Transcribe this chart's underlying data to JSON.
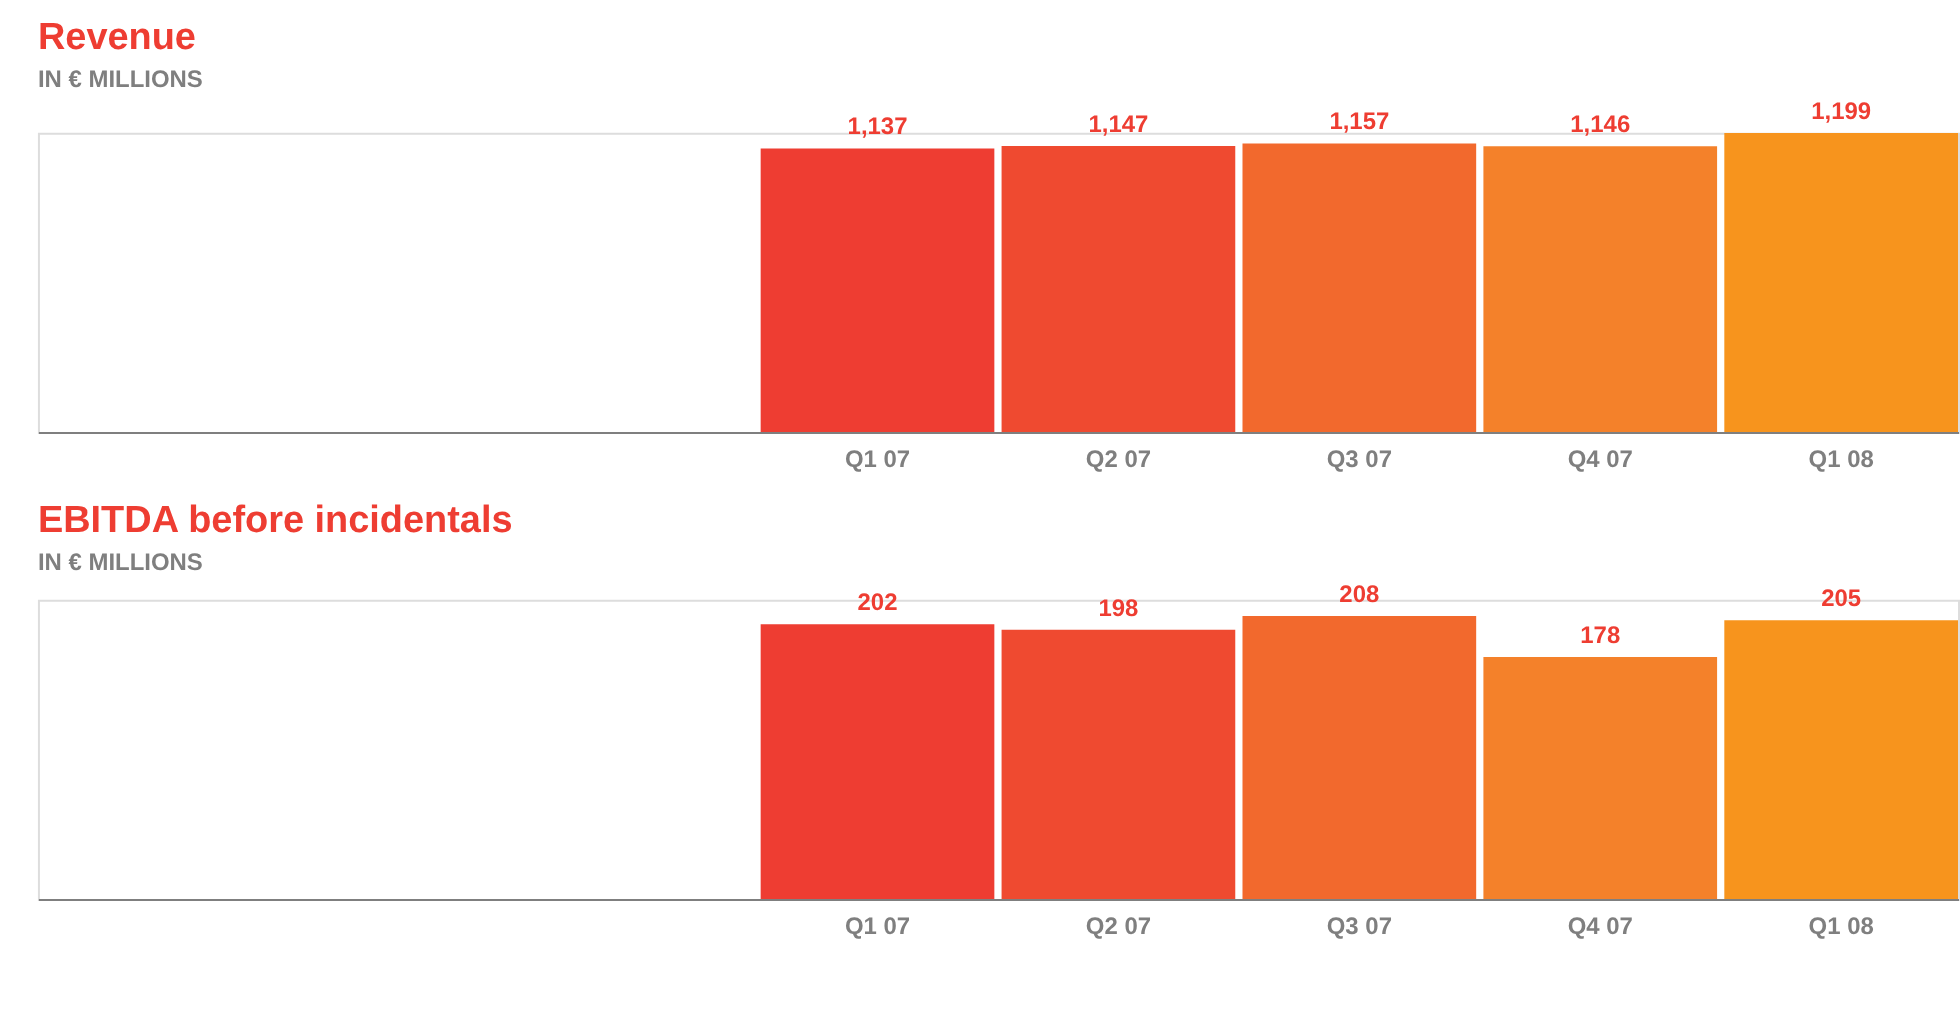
{
  "chart_data": [
    {
      "type": "bar",
      "title": "Revenue",
      "subtitle": "IN € MILLIONS",
      "categories": [
        null,
        null,
        null,
        "Q1 07",
        "Q2 07",
        "Q3 07",
        "Q4 07",
        "Q1 08"
      ],
      "values": [
        null,
        null,
        null,
        1137,
        1147,
        1157,
        1146,
        1199
      ],
      "value_labels": [
        null,
        null,
        null,
        "1,137",
        "1,147",
        "1,157",
        "1,146",
        "1,199"
      ],
      "colors": [
        "#ee3d32",
        "#ee3d32",
        "#ee3d32",
        "#ee3d32",
        "#ef4a30",
        "#f2692d",
        "#f4812a",
        "#f7941d"
      ],
      "tick_labels": "x"
    },
    {
      "type": "bar",
      "title": "EBITDA before incidentals",
      "subtitle": "IN € MILLIONS",
      "categories": [
        null,
        null,
        null,
        "Q1 07",
        "Q2 07",
        "Q3 07",
        "Q4 07",
        "Q1 08"
      ],
      "values": [
        null,
        null,
        null,
        202,
        198,
        208,
        178,
        205
      ],
      "value_labels": [
        null,
        null,
        null,
        "202",
        "198",
        "208",
        "178",
        "205"
      ],
      "colors": [
        "#ee3d32",
        "#ee3d32",
        "#ee3d32",
        "#ee3d32",
        "#ef4a30",
        "#f2692d",
        "#f4812a",
        "#f7941d"
      ],
      "tick_labels": "x"
    }
  ]
}
